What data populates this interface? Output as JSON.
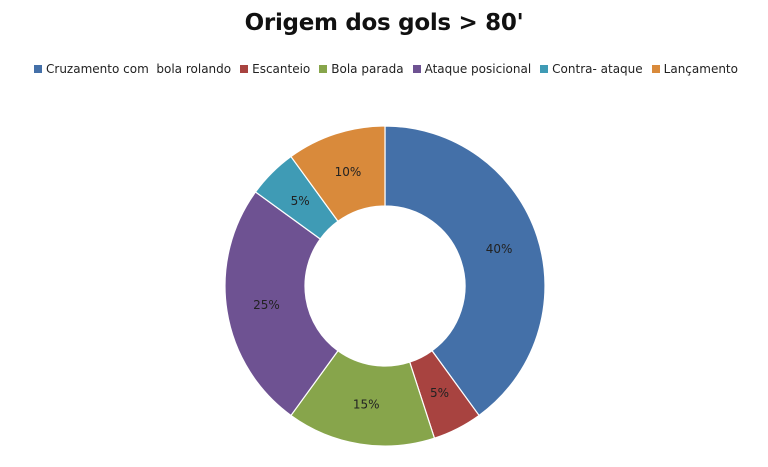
{
  "chart_data": {
    "type": "pie",
    "title": "Origem dos gols > 80'",
    "legend_position": "top",
    "donut": true,
    "categories": [
      "Cruzamento com  bola rolando",
      "Escanteio",
      "Bola parada",
      "Ataque posicional",
      "Contra- ataque",
      "Lançamento"
    ],
    "values": [
      40,
      5,
      15,
      25,
      5,
      10
    ],
    "labels": [
      "40%",
      "5%",
      "15%",
      "25%",
      "5%",
      "10%"
    ],
    "colors": [
      "#4470A8",
      "#A84340",
      "#87A54B",
      "#6E5292",
      "#3F9BB5",
      "#D98A3B"
    ]
  }
}
